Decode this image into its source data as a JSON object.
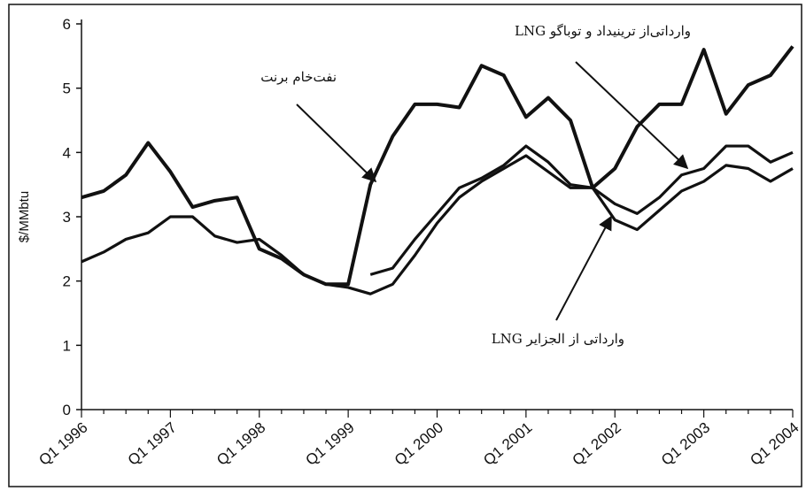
{
  "chart_data": {
    "type": "line",
    "ylabel": "$/MMbtu",
    "categories": [
      "Q1 1996",
      null,
      null,
      null,
      "Q1 1997",
      null,
      null,
      null,
      "Q1 1998",
      null,
      null,
      null,
      "Q1 1999",
      null,
      null,
      null,
      "Q1 2000",
      null,
      null,
      null,
      "Q1 2001",
      null,
      null,
      null,
      "Q1 2002",
      null,
      null,
      null,
      "Q1 2003",
      null,
      null,
      null,
      "Q1 2004"
    ],
    "series": [
      {
        "name": "نفت‌خام برنت",
        "color": "#111111",
        "values": [
          3.3,
          3.4,
          3.65,
          4.15,
          3.7,
          3.15,
          3.25,
          3.3,
          2.5,
          2.35,
          2.1,
          1.95,
          1.95,
          3.5,
          4.25,
          4.75,
          4.75,
          4.7,
          5.35,
          5.2,
          4.55,
          4.85,
          4.5,
          3.45,
          3.75,
          4.4,
          4.75,
          4.75,
          5.6,
          4.6,
          5.05,
          5.2,
          5.65
        ]
      },
      {
        "name": "LNG وارداتی‌از ترینیداد و توباگو",
        "color": "#111111",
        "values": [
          null,
          null,
          null,
          null,
          null,
          null,
          null,
          null,
          null,
          null,
          null,
          null,
          null,
          2.1,
          2.2,
          2.65,
          3.05,
          3.45,
          3.6,
          3.8,
          4.1,
          3.85,
          3.5,
          3.45,
          3.2,
          3.05,
          3.3,
          3.65,
          3.75,
          4.1,
          4.1,
          3.85,
          4.0
        ]
      },
      {
        "name": "LNG وارداتی از الجزایر",
        "color": "#111111",
        "values": [
          2.3,
          2.45,
          2.65,
          2.75,
          3.0,
          3.0,
          2.7,
          2.6,
          2.65,
          2.4,
          2.1,
          1.95,
          1.9,
          1.8,
          1.95,
          2.4,
          2.9,
          3.3,
          3.55,
          3.75,
          3.95,
          3.7,
          3.45,
          3.45,
          2.95,
          2.8,
          3.1,
          3.4,
          3.55,
          3.8,
          3.75,
          3.55,
          3.75
        ]
      }
    ],
    "ylim": [
      0,
      6
    ],
    "yticks": [
      0,
      1,
      2,
      3,
      4,
      5,
      6
    ]
  }
}
